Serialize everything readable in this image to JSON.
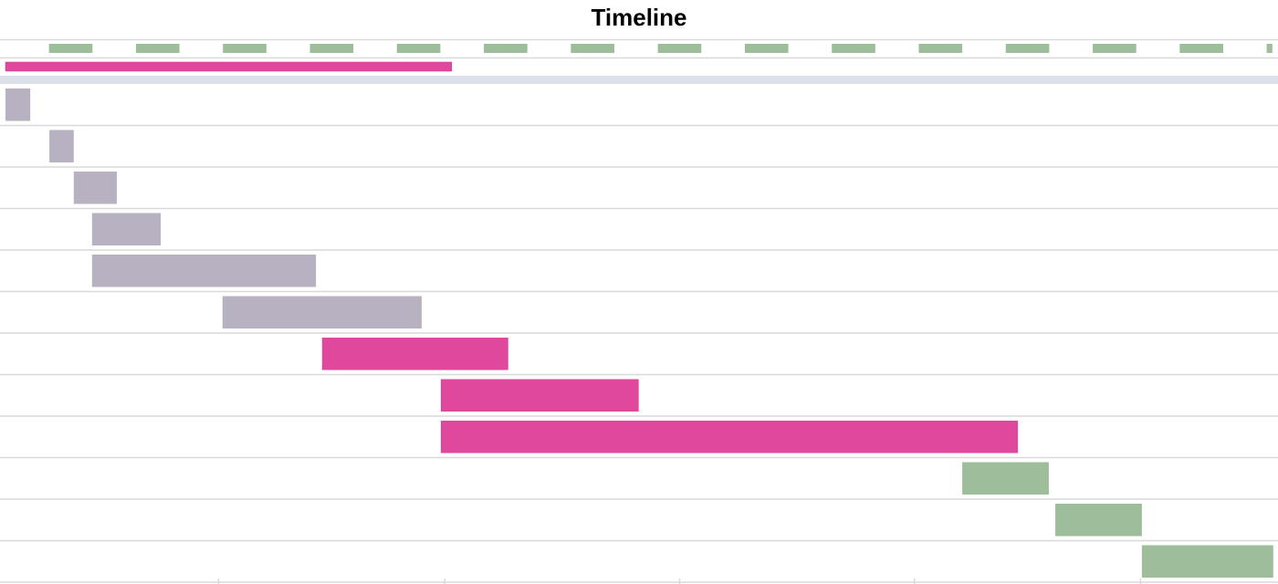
{
  "chart_data": {
    "type": "gantt",
    "title": "Timeline",
    "xlim": [
      0,
      29.26
    ],
    "colors": {
      "grey": "#b8b1c1",
      "pink": "#e0489e",
      "green": "#9dbd9b",
      "separator": "#dce0e8",
      "grid": "#d9d9d9"
    },
    "overview": {
      "start": 0,
      "end": 10.26,
      "color": "pink"
    },
    "scale_markers": [
      [
        1,
        2
      ],
      [
        3,
        4
      ],
      [
        5,
        6
      ],
      [
        7,
        8
      ],
      [
        9,
        10
      ],
      [
        11,
        12
      ],
      [
        13,
        14
      ],
      [
        15,
        16
      ],
      [
        17,
        18
      ],
      [
        19,
        20
      ],
      [
        21,
        22
      ],
      [
        23,
        24
      ],
      [
        25,
        26
      ],
      [
        27,
        28
      ],
      [
        29,
        29.13
      ]
    ],
    "axis_ticks": [
      4.9,
      10.1,
      15.5,
      20.9,
      26.1
    ],
    "tasks": [
      {
        "start": 0,
        "end": 0.57,
        "color": "grey"
      },
      {
        "start": 1.01,
        "end": 1.57,
        "color": "grey"
      },
      {
        "start": 1.57,
        "end": 2.56,
        "color": "grey"
      },
      {
        "start": 1.99,
        "end": 3.57,
        "color": "grey"
      },
      {
        "start": 1.99,
        "end": 7.14,
        "color": "grey"
      },
      {
        "start": 4.99,
        "end": 9.57,
        "color": "grey"
      },
      {
        "start": 7.28,
        "end": 11.56,
        "color": "pink"
      },
      {
        "start": 10.01,
        "end": 14.56,
        "color": "pink"
      },
      {
        "start": 10.01,
        "end": 23.28,
        "color": "pink"
      },
      {
        "start": 22.0,
        "end": 23.99,
        "color": "green"
      },
      {
        "start": 24.14,
        "end": 26.13,
        "color": "green"
      },
      {
        "start": 26.13,
        "end": 29.15,
        "color": "green"
      }
    ]
  }
}
